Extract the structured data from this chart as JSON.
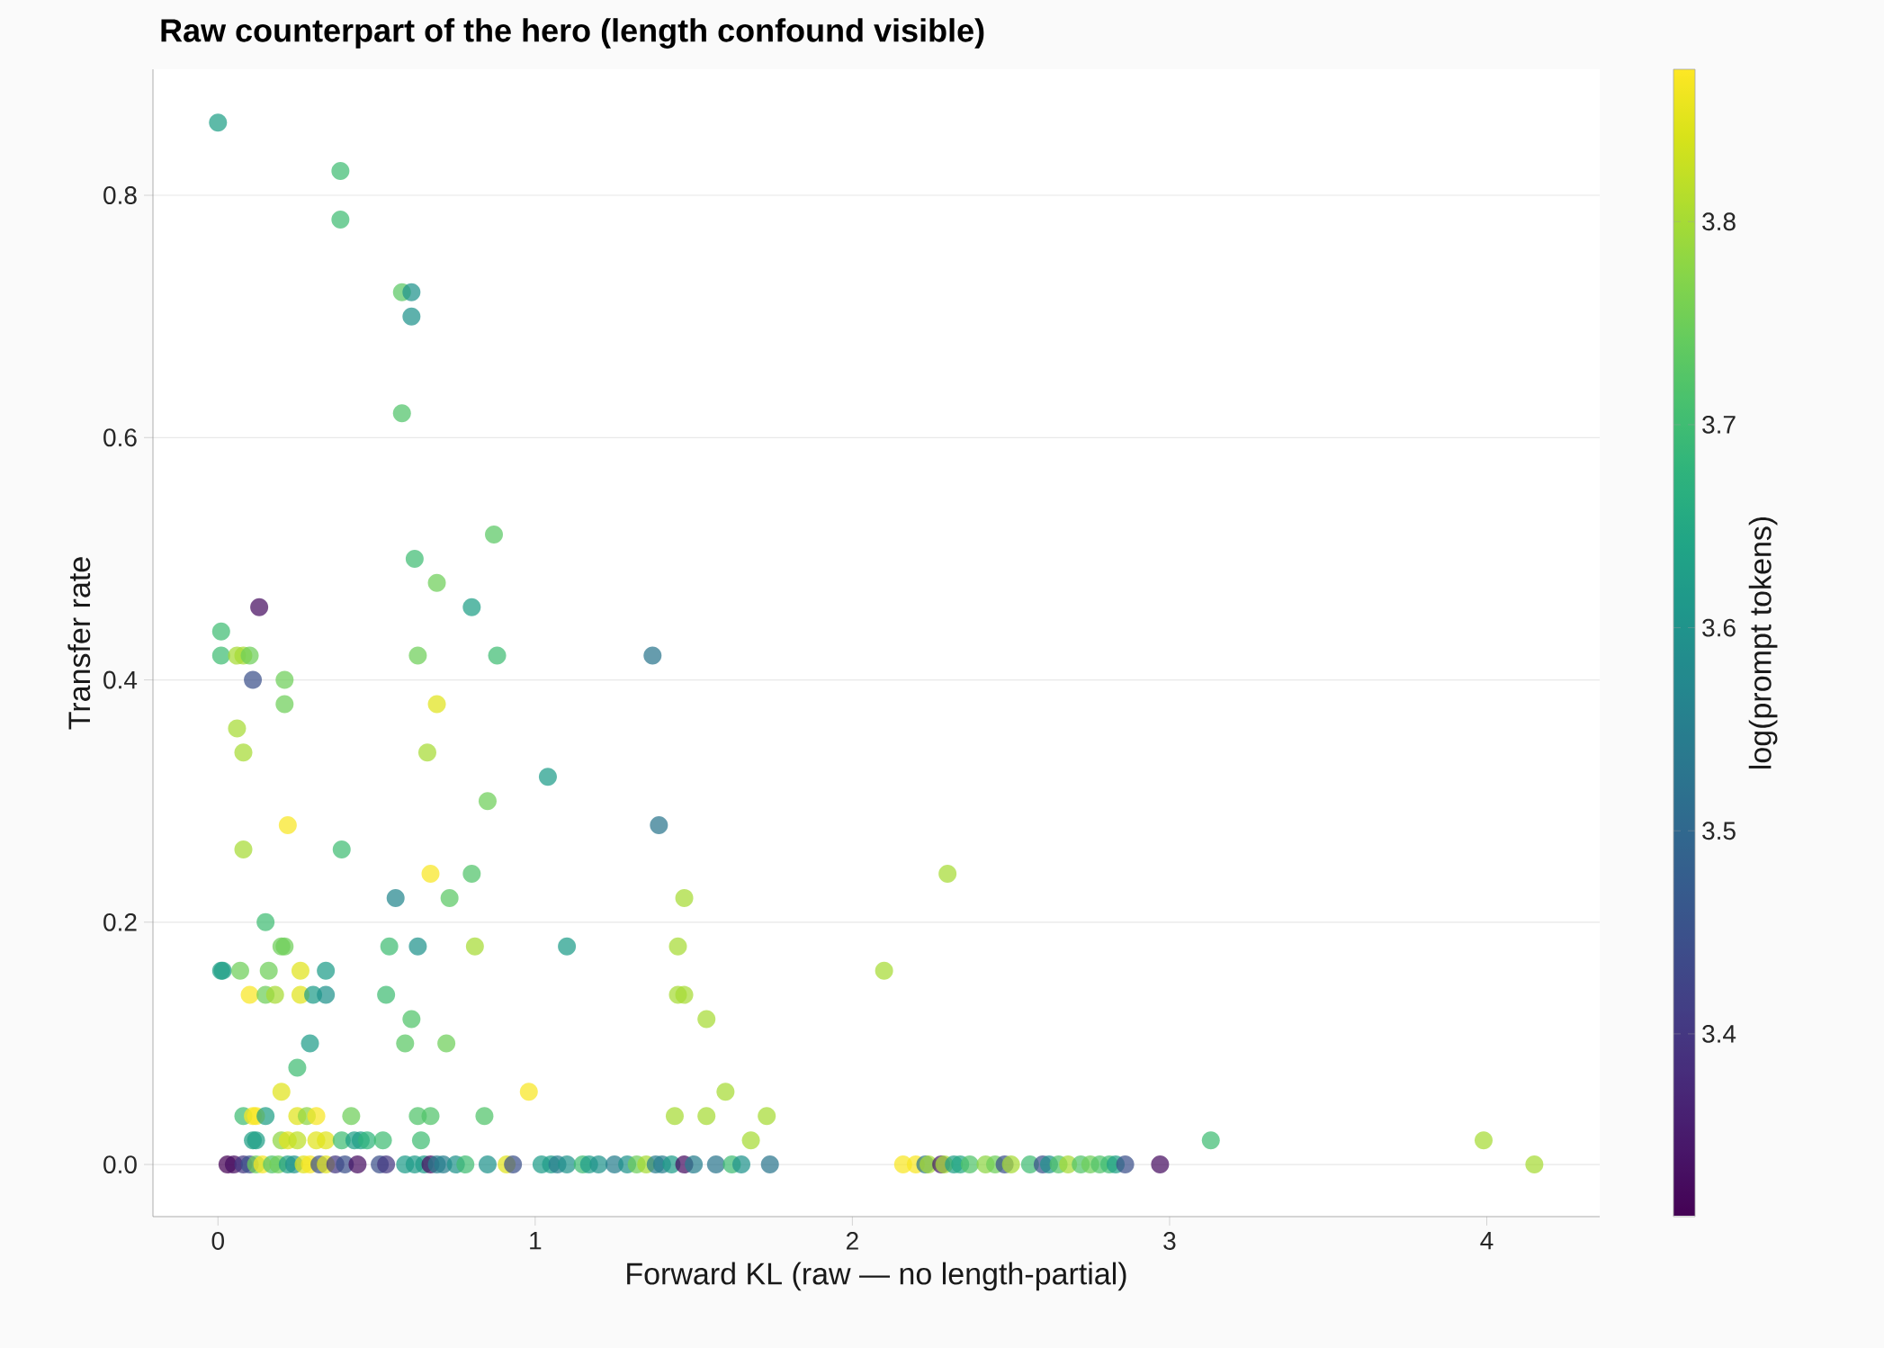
{
  "chart_data": {
    "type": "scatter",
    "title": "Raw counterpart of the hero (length confound visible)",
    "xlabel": "Forward KL (raw — no length-partial)",
    "ylabel": "Transfer rate",
    "clabel": "log(prompt tokens)",
    "x": [
      0,
      0.386,
      0.386,
      0.58,
      0.61,
      0.61,
      0.58,
      0.87,
      0.62,
      0.69,
      0.8,
      0.13,
      0.01,
      0.01,
      0.06,
      0.08,
      0.1,
      0.63,
      0.88,
      1.37,
      0.11,
      0.21,
      0.21,
      0.69,
      0.06,
      0.08,
      0.66,
      1.04,
      0.85,
      1.39,
      0.22,
      0.08,
      0.39,
      0.67,
      0.8,
      2.3,
      0.56,
      0.73,
      1.47,
      0.15,
      0.2,
      0.21,
      0.54,
      0.63,
      0.81,
      1.1,
      1.45,
      0.01,
      0.015,
      0.07,
      0.16,
      0.26,
      0.34,
      2.1,
      0.1,
      0.15,
      0.18,
      0.26,
      0.3,
      0.34,
      0.53,
      1.45,
      1.47,
      0.61,
      1.54,
      0.29,
      0.59,
      0.72,
      0.25,
      0.2,
      0.98,
      1.6,
      0.08,
      0.11,
      0.12,
      0.15,
      0.25,
      0.28,
      0.31,
      0.42,
      0.63,
      0.67,
      0.84,
      1.44,
      1.54,
      1.73,
      0.11,
      0.12,
      0.2,
      0.22,
      0.25,
      0.31,
      0.34,
      0.39,
      0.43,
      0.45,
      0.47,
      0.52,
      0.64,
      1.68,
      3.13,
      3.99,
      0.03,
      0.05,
      0.08,
      0.1,
      0.12,
      0.14,
      0.17,
      0.19,
      0.22,
      0.24,
      0.27,
      0.29,
      0.32,
      0.34,
      0.37,
      0.4,
      0.44,
      0.51,
      0.53,
      0.59,
      0.62,
      0.65,
      0.67,
      0.69,
      0.71,
      0.75,
      0.78,
      0.85,
      0.91,
      0.93,
      1.02,
      1.05,
      1.07,
      1.1,
      1.15,
      1.17,
      1.2,
      1.25,
      1.29,
      1.32,
      1.35,
      1.38,
      1.4,
      1.43,
      1.47,
      1.5,
      1.57,
      1.62,
      1.65,
      1.74,
      2.16,
      2.2,
      2.23,
      2.24,
      2.28,
      2.29,
      2.32,
      2.34,
      2.37,
      2.42,
      2.45,
      2.48,
      2.5,
      2.56,
      2.6,
      2.62,
      2.65,
      2.68,
      2.72,
      2.75,
      2.78,
      2.81,
      2.83,
      2.86,
      2.97,
      4.15
    ],
    "values": [
      0.86,
      0.82,
      0.78,
      0.72,
      0.72,
      0.7,
      0.62,
      0.52,
      0.5,
      0.48,
      0.46,
      0.46,
      0.44,
      0.42,
      0.42,
      0.42,
      0.42,
      0.42,
      0.42,
      0.42,
      0.4,
      0.4,
      0.38,
      0.38,
      0.36,
      0.34,
      0.34,
      0.32,
      0.3,
      0.28,
      0.28,
      0.26,
      0.26,
      0.24,
      0.24,
      0.24,
      0.22,
      0.22,
      0.22,
      0.2,
      0.18,
      0.18,
      0.18,
      0.18,
      0.18,
      0.18,
      0.18,
      0.16,
      0.16,
      0.16,
      0.16,
      0.16,
      0.16,
      0.16,
      0.14,
      0.14,
      0.14,
      0.14,
      0.14,
      0.14,
      0.14,
      0.14,
      0.14,
      0.12,
      0.12,
      0.1,
      0.1,
      0.1,
      0.08,
      0.06,
      0.06,
      0.06,
      0.04,
      0.04,
      0.04,
      0.04,
      0.04,
      0.04,
      0.04,
      0.04,
      0.04,
      0.04,
      0.04,
      0.04,
      0.04,
      0.04,
      0.02,
      0.02,
      0.02,
      0.02,
      0.02,
      0.02,
      0.02,
      0.02,
      0.02,
      0.02,
      0.02,
      0.02,
      0.02,
      0.02,
      0.02,
      0.02,
      0,
      0,
      0,
      0,
      0,
      0,
      0,
      0,
      0,
      0,
      0,
      0,
      0,
      0,
      0,
      0,
      0,
      0,
      0,
      0,
      0,
      0,
      0,
      0,
      0,
      0,
      0,
      0,
      0,
      0,
      0,
      0,
      0,
      0,
      0,
      0,
      0,
      0,
      0,
      0,
      0,
      0,
      0,
      0,
      0,
      0,
      0,
      0,
      0,
      0,
      0,
      0,
      0,
      0,
      0,
      0,
      0,
      0,
      0,
      0,
      0,
      0,
      0,
      0,
      0,
      0,
      0,
      0,
      0,
      0,
      0,
      0,
      0,
      0,
      0,
      0
    ],
    "cvalues": [
      3.63,
      3.7,
      3.7,
      3.73,
      3.6,
      3.6,
      3.72,
      3.73,
      3.7,
      3.75,
      3.63,
      3.33,
      3.7,
      3.7,
      3.8,
      3.8,
      3.75,
      3.75,
      3.7,
      3.53,
      3.45,
      3.75,
      3.75,
      3.85,
      3.8,
      3.8,
      3.8,
      3.62,
      3.75,
      3.53,
      3.87,
      3.8,
      3.7,
      3.87,
      3.72,
      3.8,
      3.57,
      3.73,
      3.8,
      3.7,
      3.75,
      3.75,
      3.7,
      3.6,
      3.8,
      3.62,
      3.8,
      3.63,
      3.63,
      3.75,
      3.75,
      3.85,
      3.62,
      3.8,
      3.87,
      3.75,
      3.8,
      3.85,
      3.62,
      3.6,
      3.7,
      3.8,
      3.8,
      3.72,
      3.8,
      3.62,
      3.73,
      3.75,
      3.7,
      3.85,
      3.87,
      3.8,
      3.7,
      3.87,
      3.87,
      3.63,
      3.85,
      3.78,
      3.87,
      3.75,
      3.72,
      3.72,
      3.72,
      3.8,
      3.8,
      3.8,
      3.63,
      3.63,
      3.78,
      3.85,
      3.82,
      3.85,
      3.85,
      3.7,
      3.63,
      3.63,
      3.68,
      3.7,
      3.7,
      3.8,
      3.7,
      3.8,
      3.31,
      3.33,
      3.4,
      3.45,
      3.75,
      3.87,
      3.72,
      3.75,
      3.63,
      3.6,
      3.85,
      3.87,
      3.45,
      3.85,
      3.4,
      3.45,
      3.33,
      3.45,
      3.4,
      3.62,
      3.62,
      3.62,
      3.33,
      3.55,
      3.55,
      3.6,
      3.7,
      3.6,
      3.85,
      3.45,
      3.62,
      3.62,
      3.55,
      3.6,
      3.7,
      3.62,
      3.6,
      3.55,
      3.6,
      3.75,
      3.8,
      3.55,
      3.55,
      3.62,
      3.33,
      3.55,
      3.53,
      3.7,
      3.6,
      3.53,
      3.87,
      3.87,
      3.53,
      3.8,
      3.35,
      3.8,
      3.63,
      3.65,
      3.72,
      3.78,
      3.75,
      3.45,
      3.8,
      3.7,
      3.45,
      3.6,
      3.72,
      3.8,
      3.72,
      3.75,
      3.72,
      3.7,
      3.63,
      3.45,
      3.33,
      3.8
    ],
    "xlim": [
      -0.205,
      4.356
    ],
    "ylim": [
      -0.043,
      0.904
    ],
    "xticks": [
      0,
      1,
      2,
      3,
      4
    ],
    "yticks": [
      {
        "value": 0,
        "label": "0.0"
      },
      0.2,
      0.4,
      0.6,
      0.8
    ],
    "clim": [
      3.31,
      3.875
    ],
    "cticks": [
      3.4,
      3.5,
      3.6,
      3.7,
      3.8
    ],
    "grid": "y",
    "marker": "circle"
  }
}
